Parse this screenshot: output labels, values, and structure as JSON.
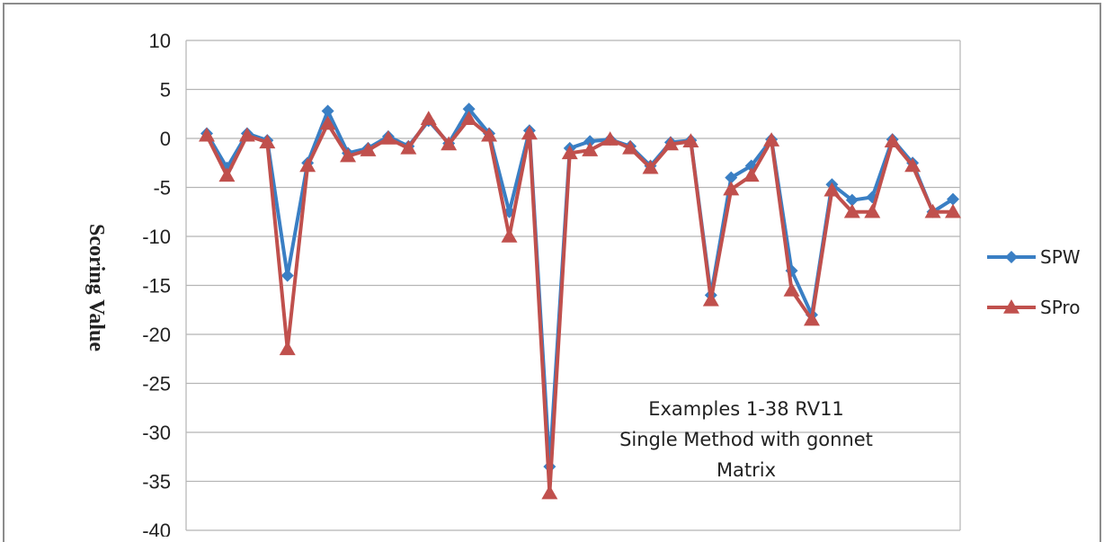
{
  "chart_data": {
    "type": "line",
    "ylabel": "Scoring Value",
    "ylim": [
      -40,
      10
    ],
    "yticks": [
      10,
      5,
      0,
      -5,
      -10,
      -15,
      -20,
      -25,
      -30,
      -35,
      -40
    ],
    "grid": true,
    "legend_position": "right",
    "annotation": [
      "Examples 1-38 RV11",
      "Single Method with gonnet",
      "Matrix"
    ],
    "series": [
      {
        "name": "SPW",
        "color": "#3a7fc4",
        "marker": "diamond",
        "values": [
          0.5,
          -3.0,
          0.5,
          -0.2,
          -14.0,
          -2.5,
          2.8,
          -1.5,
          -1.0,
          0.2,
          -0.8,
          1.8,
          -0.5,
          3.0,
          0.5,
          -7.5,
          0.8,
          -33.5,
          -1.0,
          -0.3,
          -0.1,
          -0.8,
          -2.8,
          -0.4,
          -0.2,
          -16.0,
          -4.0,
          -2.8,
          -0.1,
          -13.5,
          -18.0,
          -4.7,
          -6.3,
          -6.0,
          -0.1,
          -2.5,
          -7.5,
          -6.2
        ]
      },
      {
        "name": "SPro",
        "color": "#c0504d",
        "marker": "triangle",
        "values": [
          0.3,
          -3.8,
          0.3,
          -0.4,
          -21.5,
          -2.8,
          1.5,
          -1.8,
          -1.2,
          0.0,
          -1.0,
          2.0,
          -0.6,
          2.0,
          0.3,
          -10.0,
          0.5,
          -36.2,
          -1.5,
          -1.2,
          -0.1,
          -1.0,
          -3.0,
          -0.6,
          -0.3,
          -16.5,
          -5.2,
          -3.8,
          -0.2,
          -15.5,
          -18.5,
          -5.3,
          -7.5,
          -7.5,
          -0.3,
          -2.8,
          -7.5,
          -7.5
        ]
      }
    ]
  }
}
